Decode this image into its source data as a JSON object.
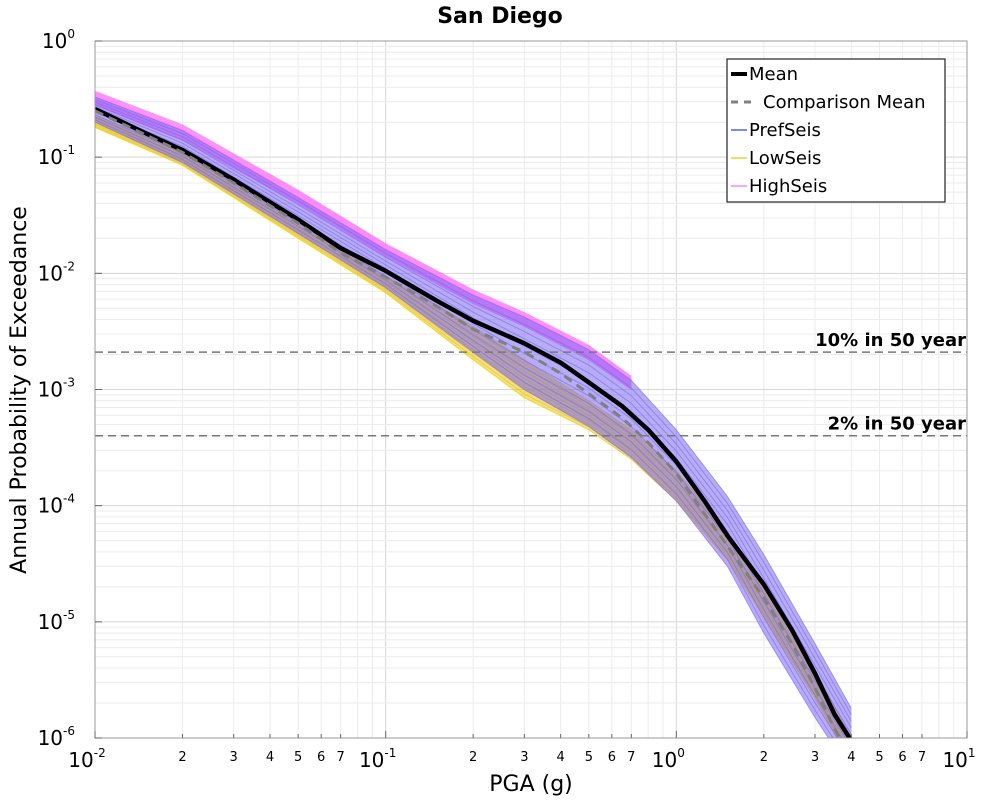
{
  "chart_data": {
    "type": "line",
    "title": "San Diego",
    "xlabel": "PGA (g)",
    "ylabel": "Annual Probability of Exceedance",
    "x_scale": "log",
    "y_scale": "log",
    "xlim": [
      0.01,
      10
    ],
    "ylim": [
      1e-06,
      1
    ],
    "grid": true,
    "legend_position": "top-right",
    "x_tick_labels": [
      "10^-2",
      "2",
      "3",
      "4",
      "5",
      "6",
      "7",
      "10^-1",
      "2",
      "3",
      "4",
      "5",
      "6",
      "7",
      "10^0",
      "2",
      "3",
      "4",
      "5",
      "6",
      "7",
      "10^1"
    ],
    "y_tick_labels": [
      "10^0",
      "10^-1",
      "10^-2",
      "10^-3",
      "10^-4",
      "10^-5",
      "10^-6"
    ],
    "series": [
      {
        "name": "Mean",
        "color": "#000000",
        "style": "solid",
        "x": [
          0.01,
          0.015,
          0.02,
          0.03,
          0.05,
          0.07,
          0.1,
          0.15,
          0.2,
          0.3,
          0.4,
          0.5,
          0.65,
          0.8,
          1.0,
          1.25,
          1.5,
          2.0,
          2.5,
          3.0,
          3.5,
          4.0,
          4.3
        ],
        "y": [
          0.26,
          0.16,
          0.115,
          0.064,
          0.029,
          0.0165,
          0.0105,
          0.0058,
          0.0039,
          0.0025,
          0.0017,
          0.00115,
          0.00072,
          0.00045,
          0.00024,
          0.00011,
          5.5e-05,
          2.1e-05,
          8.5e-06,
          3.6e-06,
          1.6e-06,
          9.5e-07,
          6e-07
        ]
      },
      {
        "name": "Comparison Mean",
        "color": "#808080",
        "style": "dashed",
        "x": [
          0.01,
          0.015,
          0.02,
          0.03,
          0.05,
          0.07,
          0.1,
          0.15,
          0.2,
          0.3,
          0.4,
          0.5,
          0.65,
          0.8,
          1.0,
          1.25,
          1.5,
          2.0,
          2.5,
          3.0,
          3.5,
          4.0
        ],
        "y": [
          0.25,
          0.155,
          0.11,
          0.06,
          0.027,
          0.015,
          0.0093,
          0.0052,
          0.0033,
          0.0021,
          0.00138,
          0.00092,
          0.00057,
          0.00035,
          0.00019,
          8.5e-05,
          4.5e-05,
          1.6e-05,
          6.5e-06,
          2.7e-06,
          1.2e-06,
          7e-07
        ]
      },
      {
        "name": "PrefSeis",
        "color": "#1f3fd4",
        "style": "solid"
      },
      {
        "name": "LowSeis",
        "color": "#e8c400",
        "style": "solid"
      },
      {
        "name": "HighSeis",
        "color": "#ff66ff",
        "style": "solid"
      }
    ],
    "bands": [
      {
        "name": "LowSeis",
        "color": "#e8c400",
        "x": [
          0.01,
          0.02,
          0.05,
          0.1,
          0.2,
          0.3,
          0.5,
          0.7,
          1.0,
          1.5,
          2.0,
          3.0,
          4.0
        ],
        "y_low": [
          0.18,
          0.085,
          0.02,
          0.0068,
          0.0018,
          0.00085,
          0.00045,
          0.00025,
          0.00011,
          3.4e-05,
          1.1e-05,
          2.2e-06,
          6e-07
        ],
        "y_high": [
          0.23,
          0.11,
          0.027,
          0.0095,
          0.0035,
          0.0018,
          0.0008,
          0.00045,
          0.0002,
          6e-05,
          1.9e-05,
          3.8e-06,
          1e-06
        ]
      },
      {
        "name": "PrefSeis",
        "color": "#7b68ee",
        "x": [
          0.01,
          0.02,
          0.05,
          0.1,
          0.2,
          0.3,
          0.5,
          0.7,
          1.0,
          1.5,
          2.0,
          3.0,
          4.0
        ],
        "y_low": [
          0.2,
          0.09,
          0.022,
          0.0075,
          0.0021,
          0.001,
          0.00048,
          0.00026,
          0.00011,
          3e-05,
          8e-06,
          1.5e-06,
          5e-07
        ],
        "y_high": [
          0.33,
          0.17,
          0.045,
          0.016,
          0.0065,
          0.0042,
          0.0022,
          0.0012,
          0.00045,
          0.00012,
          3.8e-05,
          6.5e-06,
          1.8e-06
        ]
      },
      {
        "name": "HighSeis",
        "color": "#ff66ff",
        "x": [
          0.01,
          0.02,
          0.05,
          0.1,
          0.2,
          0.3,
          0.5,
          0.7
        ],
        "y_low": [
          0.28,
          0.14,
          0.04,
          0.014,
          0.0055,
          0.0035,
          0.0018,
          0.001
        ],
        "y_high": [
          0.37,
          0.19,
          0.052,
          0.018,
          0.0072,
          0.0046,
          0.0024,
          0.0013
        ]
      }
    ],
    "reference_lines": [
      {
        "label": "10% in 50 year",
        "y": 0.0021
      },
      {
        "label": "2% in 50 year",
        "y": 0.0004
      }
    ]
  }
}
